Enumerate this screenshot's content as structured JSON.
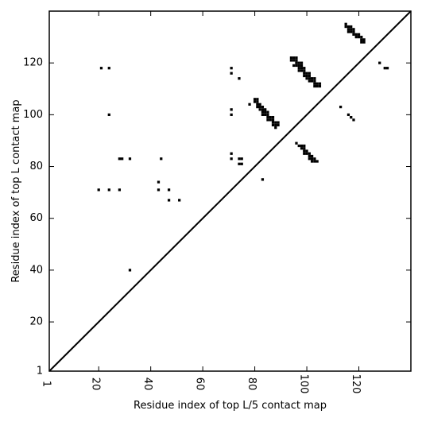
{
  "chart_data": {
    "type": "heatmap",
    "title": "",
    "xlabel": "Residue index of top L/5 contact map",
    "ylabel": "Residue index of top L contact map",
    "xlim": [
      1,
      140
    ],
    "ylim": [
      1,
      140
    ],
    "xticks": [
      1,
      20,
      40,
      60,
      80,
      100,
      120
    ],
    "yticks": [
      1,
      20,
      40,
      60,
      80,
      100,
      120
    ],
    "grid": false,
    "colors": {
      "cell": "#000000",
      "background": "#ffffff",
      "diagonal": "#000000"
    },
    "diagonal": {
      "from": [
        1,
        1
      ],
      "to": [
        140,
        140
      ]
    },
    "cells": [
      [
        21,
        118
      ],
      [
        24,
        118
      ],
      [
        24,
        100
      ],
      [
        20,
        71
      ],
      [
        24,
        71
      ],
      [
        28,
        71
      ],
      [
        28,
        83
      ],
      [
        29,
        83
      ],
      [
        32,
        83
      ],
      [
        32,
        40
      ],
      [
        44,
        83
      ],
      [
        43,
        74
      ],
      [
        43,
        71
      ],
      [
        47,
        71
      ],
      [
        47,
        67
      ],
      [
        51,
        67
      ],
      [
        71,
        118
      ],
      [
        71,
        116
      ],
      [
        74,
        114
      ],
      [
        71,
        102
      ],
      [
        71,
        100
      ],
      [
        71,
        85
      ],
      [
        71,
        83
      ],
      [
        74,
        83
      ],
      [
        75,
        83
      ],
      [
        74,
        81
      ],
      [
        75,
        81
      ],
      [
        78,
        104
      ],
      [
        83,
        75
      ],
      [
        80,
        106
      ],
      [
        81,
        106
      ],
      [
        80,
        105
      ],
      [
        81,
        105
      ],
      [
        81,
        104
      ],
      [
        82,
        104
      ],
      [
        81,
        103
      ],
      [
        82,
        103
      ],
      [
        83,
        103
      ],
      [
        82,
        102
      ],
      [
        83,
        102
      ],
      [
        84,
        102
      ],
      [
        83,
        101
      ],
      [
        84,
        101
      ],
      [
        85,
        101
      ],
      [
        83,
        100
      ],
      [
        84,
        100
      ],
      [
        85,
        100
      ],
      [
        85,
        99
      ],
      [
        86,
        99
      ],
      [
        87,
        99
      ],
      [
        85,
        98
      ],
      [
        86,
        98
      ],
      [
        87,
        98
      ],
      [
        87,
        97
      ],
      [
        88,
        97
      ],
      [
        89,
        97
      ],
      [
        87,
        96
      ],
      [
        88,
        96
      ],
      [
        89,
        96
      ],
      [
        88,
        95
      ],
      [
        94,
        122
      ],
      [
        95,
        122
      ],
      [
        96,
        122
      ],
      [
        94,
        121
      ],
      [
        95,
        121
      ],
      [
        96,
        121
      ],
      [
        96,
        120
      ],
      [
        97,
        120
      ],
      [
        98,
        120
      ],
      [
        95,
        119
      ],
      [
        96,
        119
      ],
      [
        97,
        119
      ],
      [
        98,
        119
      ],
      [
        97,
        118
      ],
      [
        98,
        118
      ],
      [
        99,
        118
      ],
      [
        97,
        117
      ],
      [
        98,
        117
      ],
      [
        99,
        117
      ],
      [
        99,
        116
      ],
      [
        100,
        116
      ],
      [
        101,
        116
      ],
      [
        99,
        115
      ],
      [
        100,
        115
      ],
      [
        101,
        115
      ],
      [
        100,
        114
      ],
      [
        101,
        114
      ],
      [
        102,
        114
      ],
      [
        103,
        114
      ],
      [
        101,
        113
      ],
      [
        102,
        113
      ],
      [
        103,
        113
      ],
      [
        103,
        112
      ],
      [
        104,
        112
      ],
      [
        105,
        112
      ],
      [
        103,
        111
      ],
      [
        104,
        111
      ],
      [
        105,
        111
      ],
      [
        96,
        89
      ],
      [
        97,
        88
      ],
      [
        98,
        88
      ],
      [
        99,
        88
      ],
      [
        98,
        87
      ],
      [
        99,
        87
      ],
      [
        99,
        86
      ],
      [
        100,
        86
      ],
      [
        99,
        85
      ],
      [
        100,
        85
      ],
      [
        101,
        85
      ],
      [
        101,
        84
      ],
      [
        102,
        84
      ],
      [
        101,
        83
      ],
      [
        102,
        83
      ],
      [
        103,
        83
      ],
      [
        102,
        82
      ],
      [
        103,
        82
      ],
      [
        104,
        82
      ],
      [
        113,
        103
      ],
      [
        116,
        100
      ],
      [
        117,
        99
      ],
      [
        118,
        98
      ],
      [
        115,
        135
      ],
      [
        115,
        134
      ],
      [
        116,
        134
      ],
      [
        117,
        134
      ],
      [
        116,
        133
      ],
      [
        117,
        133
      ],
      [
        118,
        133
      ],
      [
        116,
        132
      ],
      [
        117,
        132
      ],
      [
        118,
        132
      ],
      [
        118,
        131
      ],
      [
        119,
        131
      ],
      [
        120,
        131
      ],
      [
        119,
        130
      ],
      [
        120,
        130
      ],
      [
        121,
        130
      ],
      [
        121,
        129
      ],
      [
        122,
        129
      ],
      [
        121,
        128
      ],
      [
        122,
        128
      ],
      [
        128,
        120
      ],
      [
        130,
        118
      ],
      [
        131,
        118
      ]
    ]
  }
}
